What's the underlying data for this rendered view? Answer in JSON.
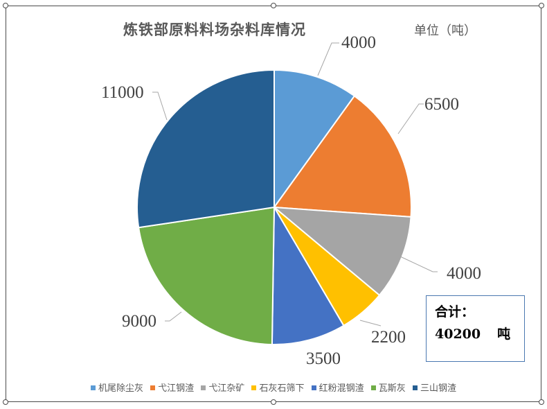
{
  "chart": {
    "title": "炼铁部原料料场杂料库情况",
    "unit_label": "单位（吨）",
    "total_box": {
      "line1": "合计：",
      "value": "40200",
      "unit": "吨"
    },
    "labels": [
      "4000",
      "6500",
      "4000",
      "2200",
      "3500",
      "9000",
      "11000"
    ],
    "legend": [
      {
        "label": "机尾除尘灰",
        "color": "#5B9BD5"
      },
      {
        "label": "弋江钢渣",
        "color": "#ED7D31"
      },
      {
        "label": "弋江杂矿",
        "color": "#A5A5A5"
      },
      {
        "label": "石灰石筛下",
        "color": "#FFC000"
      },
      {
        "label": "红粉混钢渣",
        "color": "#4472C4"
      },
      {
        "label": "瓦斯灰",
        "color": "#70AD47"
      },
      {
        "label": "三山钢渣",
        "color": "#255E91"
      }
    ]
  },
  "chart_data": {
    "type": "pie",
    "title": "炼铁部原料料场杂料库情况",
    "subtitle": "单位（吨）",
    "categories": [
      "机尾除尘灰",
      "弋江钢渣",
      "弋江杂矿",
      "石灰石筛下",
      "红粉混钢渣",
      "瓦斯灰",
      "三山钢渣"
    ],
    "values": [
      4000,
      6500,
      4000,
      2200,
      3500,
      9000,
      11000
    ],
    "colors": [
      "#5B9BD5",
      "#ED7D31",
      "#A5A5A5",
      "#FFC000",
      "#4472C4",
      "#70AD47",
      "#255E91"
    ],
    "total": 40200,
    "annotations": [
      "合计：40200 吨"
    ],
    "legend_position": "bottom",
    "start_angle": "12 o'clock, clockwise"
  }
}
